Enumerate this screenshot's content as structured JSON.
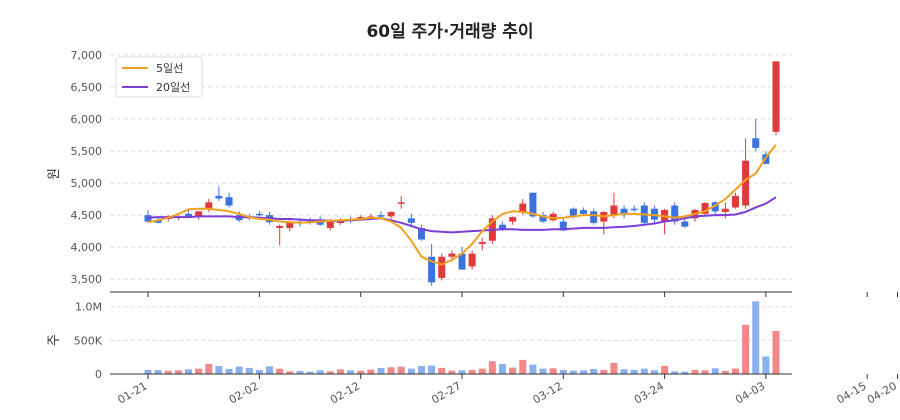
{
  "chart_data": {
    "type": "candlestick",
    "title": "60일 주가·거래량 추이",
    "price_axis": {
      "label": "원",
      "ylim": [
        3300,
        7000
      ],
      "ticks": [
        3500,
        4000,
        4500,
        5000,
        5500,
        6000,
        6500,
        7000
      ],
      "tick_labels": [
        "3,500",
        "4,000",
        "4,500",
        "5,000",
        "5,500",
        "6,000",
        "6,500",
        "7,000"
      ]
    },
    "volume_axis": {
      "label": "주",
      "ylim": [
        0,
        1100000
      ],
      "ticks": [
        0,
        500000,
        1000000
      ],
      "tick_labels": [
        "0",
        "500K",
        "1.0M"
      ]
    },
    "x_tick_labels": [
      "01-21",
      "02-02",
      "02-12",
      "02-27",
      "03-12",
      "03-24",
      "04-03",
      "04-15",
      "04-20"
    ],
    "x_tick_index": [
      0,
      11,
      21,
      31,
      41,
      51,
      61,
      71,
      74
    ],
    "legend": [
      {
        "name": "5일선",
        "color": "#f0a020"
      },
      {
        "name": "20일선",
        "color": "#7b3fd8"
      }
    ],
    "colors": {
      "up": "#e03a3a",
      "down": "#3a73e0",
      "vol_up": "#f08a8a",
      "vol_down": "#8ab0f0"
    },
    "grid": true,
    "legend_position": "top-left",
    "candles": [
      [
        4500,
        4580,
        4380,
        4400
      ],
      [
        4420,
        4480,
        4370,
        4380
      ],
      [
        4440,
        4500,
        4400,
        4470
      ],
      [
        4460,
        4520,
        4420,
        4480
      ],
      [
        4520,
        4580,
        4470,
        4480
      ],
      [
        4480,
        4560,
        4430,
        4560
      ],
      [
        4600,
        4750,
        4550,
        4700
      ],
      [
        4800,
        4950,
        4720,
        4760
      ],
      [
        4780,
        4850,
        4620,
        4650
      ],
      [
        4500,
        4560,
        4390,
        4420
      ],
      [
        4480,
        4520,
        4420,
        4450
      ],
      [
        4520,
        4560,
        4480,
        4500
      ],
      [
        4500,
        4550,
        4350,
        4390
      ],
      [
        4300,
        4350,
        4030,
        4330
      ],
      [
        4300,
        4420,
        4250,
        4380
      ],
      [
        4400,
        4450,
        4320,
        4380
      ],
      [
        4420,
        4460,
        4350,
        4380
      ],
      [
        4420,
        4480,
        4330,
        4350
      ],
      [
        4300,
        4440,
        4260,
        4400
      ],
      [
        4400,
        4450,
        4350,
        4400
      ],
      [
        4430,
        4480,
        4380,
        4420
      ],
      [
        4450,
        4500,
        4420,
        4470
      ],
      [
        4460,
        4520,
        4420,
        4480
      ],
      [
        4500,
        4560,
        4450,
        4480
      ],
      [
        4480,
        4560,
        4440,
        4550
      ],
      [
        4700,
        4800,
        4600,
        4700
      ],
      [
        4450,
        4520,
        4320,
        4380
      ],
      [
        4300,
        4350,
        4100,
        4120
      ],
      [
        3850,
        4050,
        3400,
        3450
      ],
      [
        3520,
        3900,
        3480,
        3850
      ],
      [
        3850,
        3950,
        3780,
        3900
      ],
      [
        3900,
        4000,
        3650,
        3650
      ],
      [
        3700,
        3950,
        3650,
        3900
      ],
      [
        4050,
        4150,
        3950,
        4080
      ],
      [
        4100,
        4500,
        4050,
        4450
      ],
      [
        4350,
        4400,
        4250,
        4280
      ],
      [
        4400,
        4480,
        4350,
        4470
      ],
      [
        4550,
        4750,
        4500,
        4680
      ],
      [
        4850,
        4850,
        4450,
        4480
      ],
      [
        4500,
        4550,
        4380,
        4400
      ],
      [
        4420,
        4550,
        4400,
        4520
      ],
      [
        4400,
        4450,
        4250,
        4260
      ],
      [
        4600,
        4620,
        4450,
        4470
      ],
      [
        4580,
        4620,
        4500,
        4520
      ],
      [
        4560,
        4600,
        4350,
        4380
      ],
      [
        4400,
        4560,
        4200,
        4550
      ],
      [
        4500,
        4850,
        4450,
        4650
      ],
      [
        4600,
        4650,
        4450,
        4500
      ],
      [
        4600,
        4650,
        4550,
        4580
      ],
      [
        4650,
        4700,
        4350,
        4380
      ],
      [
        4600,
        4650,
        4380,
        4430
      ],
      [
        4400,
        4600,
        4200,
        4580
      ],
      [
        4650,
        4700,
        4350,
        4400
      ],
      [
        4400,
        4450,
        4300,
        4320
      ],
      [
        4450,
        4600,
        4400,
        4580
      ],
      [
        4520,
        4700,
        4480,
        4690
      ],
      [
        4700,
        4720,
        4520,
        4560
      ],
      [
        4550,
        4700,
        4450,
        4600
      ],
      [
        4620,
        4850,
        4600,
        4800
      ],
      [
        4650,
        5700,
        4600,
        5350
      ],
      [
        5700,
        6000,
        5500,
        5550
      ],
      [
        5450,
        5500,
        5300,
        5300
      ],
      [
        5800,
        6900,
        5750,
        6900
      ]
    ],
    "volumes": [
      62000,
      58000,
      48000,
      55000,
      70000,
      80000,
      150000,
      120000,
      75000,
      110000,
      90000,
      60000,
      115000,
      80000,
      40000,
      45000,
      35000,
      55000,
      40000,
      70000,
      55000,
      48000,
      65000,
      90000,
      100000,
      110000,
      80000,
      120000,
      125000,
      90000,
      50000,
      55000,
      60000,
      80000,
      190000,
      150000,
      95000,
      210000,
      140000,
      80000,
      85000,
      60000,
      50000,
      55000,
      75000,
      60000,
      165000,
      70000,
      60000,
      80000,
      55000,
      120000,
      40000,
      35000,
      60000,
      55000,
      85000,
      45000,
      80000,
      730000,
      1080000,
      260000,
      640000
    ],
    "ma5": [
      4390,
      4420,
      4460,
      4520,
      4590,
      4600,
      4600,
      4580,
      4560,
      4520,
      4470,
      4440,
      4430,
      4400,
      4390,
      4380,
      4390,
      4400,
      4410,
      4420,
      4430,
      4440,
      4460,
      4450,
      4400,
      4300,
      4100,
      3850,
      3780,
      3730,
      3800,
      3900,
      4050,
      4250,
      4400,
      4520,
      4560,
      4550,
      4520,
      4480,
      4450,
      4460,
      4480,
      4500,
      4500,
      4480,
      4500,
      4520,
      4520,
      4510,
      4500,
      4480,
      4460,
      4480,
      4520,
      4560,
      4650,
      4750,
      4900,
      5050,
      5150,
      5400,
      5600
    ],
    "ma20": [
      4460,
      4470,
      4470,
      4470,
      4470,
      4480,
      4480,
      4480,
      4480,
      4470,
      4470,
      4460,
      4450,
      4440,
      4440,
      4430,
      4420,
      4420,
      4410,
      4410,
      4420,
      4430,
      4440,
      4450,
      4420,
      4380,
      4330,
      4280,
      4250,
      4240,
      4230,
      4240,
      4250,
      4260,
      4270,
      4280,
      4280,
      4270,
      4270,
      4270,
      4280,
      4280,
      4290,
      4300,
      4300,
      4300,
      4310,
      4320,
      4330,
      4350,
      4370,
      4400,
      4420,
      4450,
      4480,
      4490,
      4500,
      4500,
      4510,
      4550,
      4620,
      4680,
      4780
    ]
  }
}
